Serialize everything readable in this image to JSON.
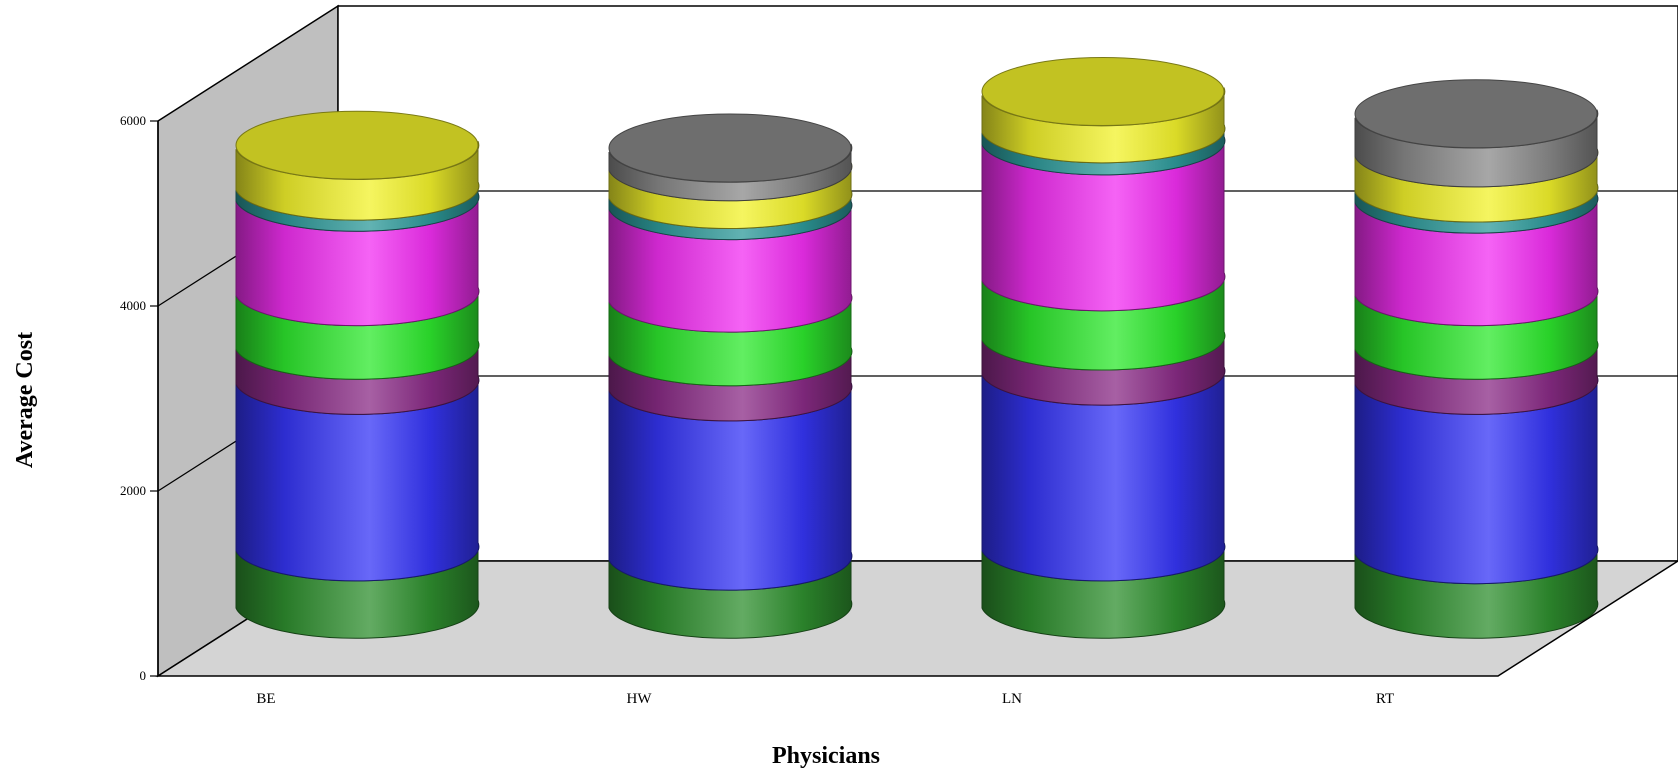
{
  "chart_data": {
    "type": "bar",
    "style": "3d-stacked-cylinder",
    "categories": [
      "BE",
      "HW",
      "LN",
      "RT"
    ],
    "xlabel": "Physicians",
    "ylabel": "Average Cost",
    "ylim": [
      0,
      6000
    ],
    "yticks": [
      0,
      2000,
      4000,
      6000
    ],
    "grid": true,
    "series": [
      {
        "color": "#2f8f2f",
        "values": [
          620,
          520,
          620,
          590
        ]
      },
      {
        "color": "#3535f5",
        "values": [
          1800,
          1830,
          1900,
          1830
        ]
      },
      {
        "color": "#8a2b86",
        "values": [
          380,
          380,
          380,
          380
        ]
      },
      {
        "color": "#2ee82e",
        "values": [
          580,
          580,
          640,
          580
        ]
      },
      {
        "color": "#f22ff2",
        "values": [
          1020,
          1000,
          1470,
          1000
        ]
      },
      {
        "color": "#2e9a9a",
        "values": [
          120,
          120,
          130,
          120
        ]
      },
      {
        "color": "#f2f22b",
        "values": [
          440,
          300,
          400,
          380
        ]
      },
      {
        "color": "#8a8a8a",
        "values": [
          0,
          200,
          0,
          420
        ]
      }
    ]
  }
}
